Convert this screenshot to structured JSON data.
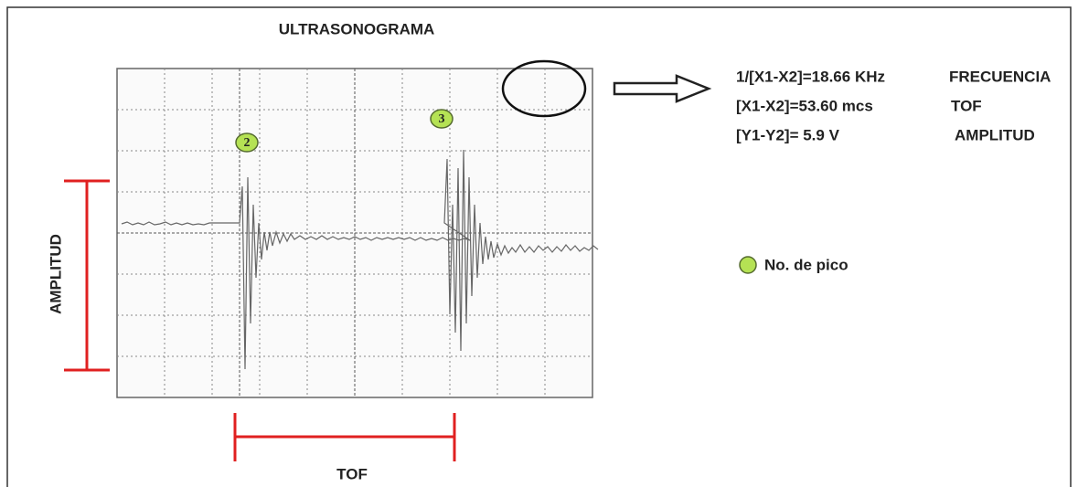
{
  "title": "ULTRASONOGRAMA",
  "axis_labels": {
    "amplitude": "AMPLITUD",
    "tof": "TOF"
  },
  "peaks": [
    "2",
    "3"
  ],
  "measurements": [
    {
      "formula": "1/[X1-X2]=18.66 KHz",
      "label": "FRECUENCIA"
    },
    {
      "formula": "[X1-X2]=53.60 mcs",
      "label": "TOF"
    },
    {
      "formula": "[Y1-Y2]= 5.9 V",
      "label": "AMPLITUD"
    }
  ],
  "legend": {
    "label": "No. de pico"
  }
}
